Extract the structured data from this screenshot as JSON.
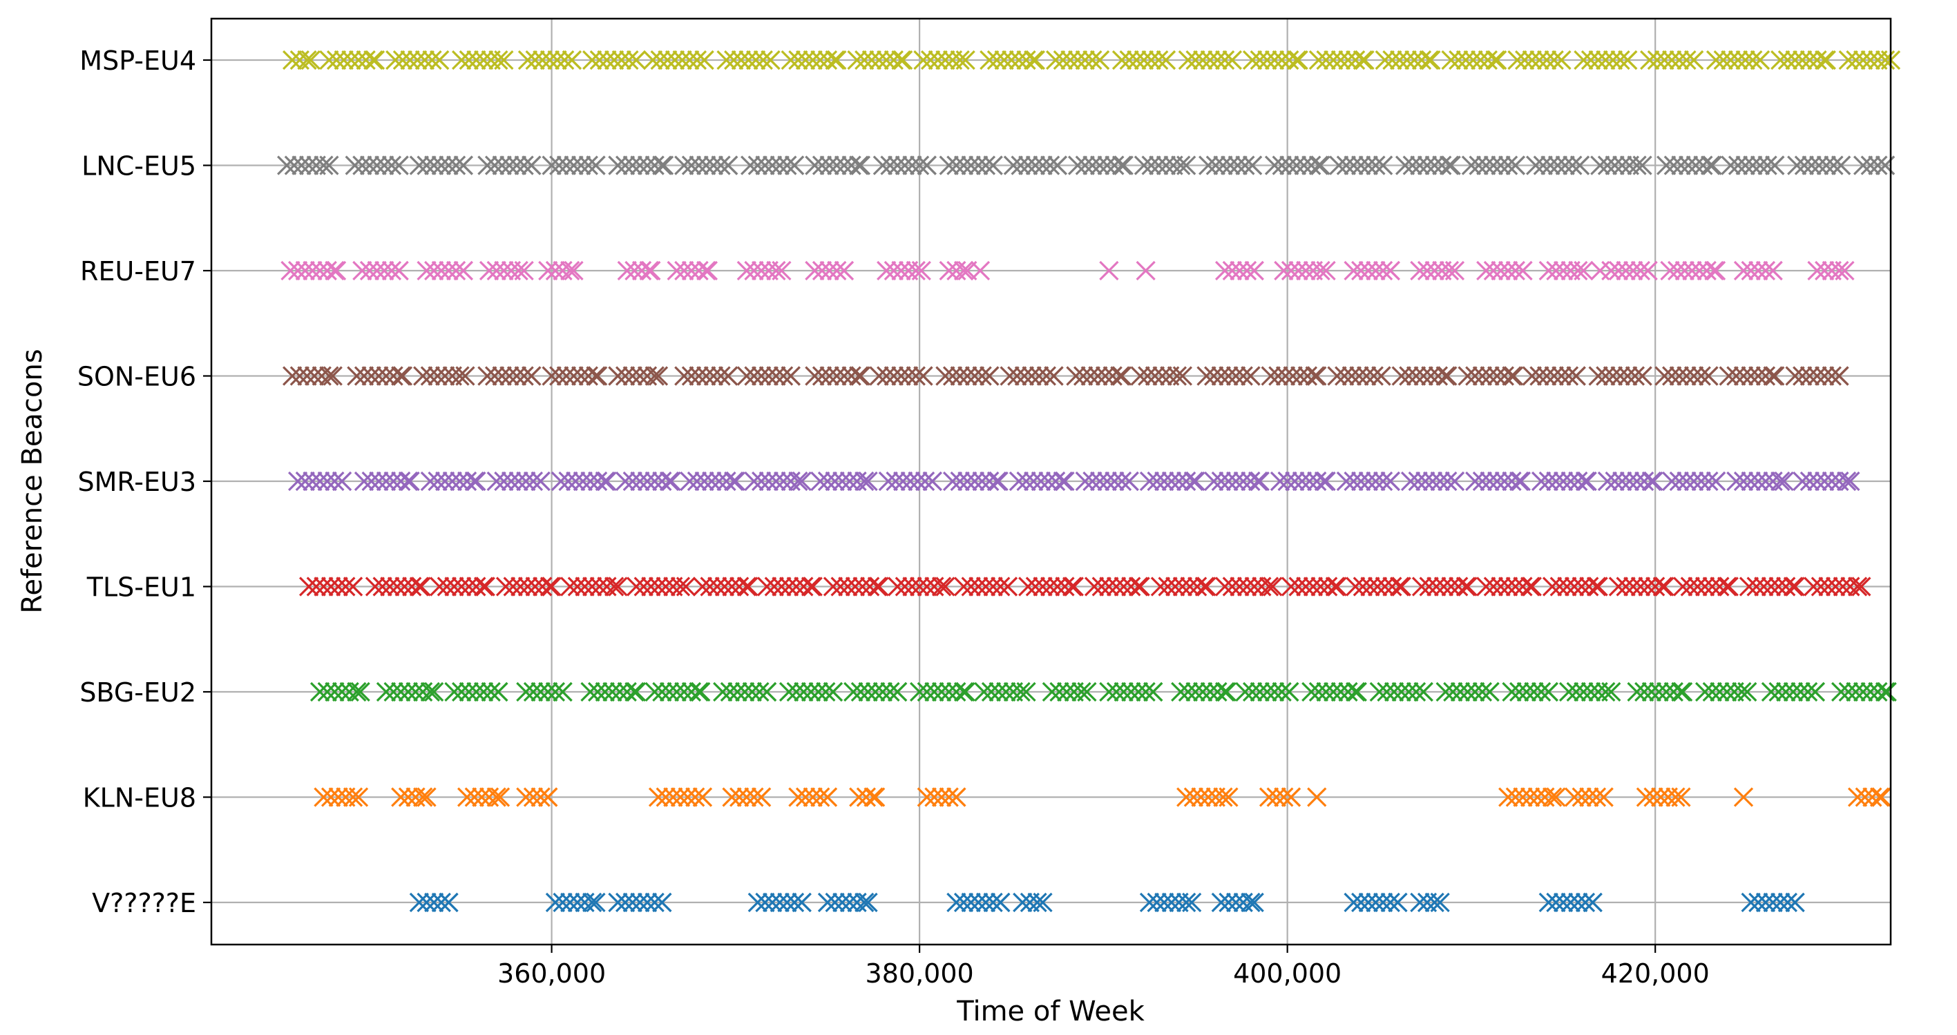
{
  "chart_data": {
    "type": "scatter",
    "title": "",
    "xlabel": "Time of Week",
    "ylabel": "Reference Beacons",
    "xlim": [
      341500,
      432800
    ],
    "x_ticks": [
      360000,
      380000,
      400000,
      420000
    ],
    "x_tick_labels": [
      "360,000",
      "380,000",
      "400,000",
      "420,000"
    ],
    "grid": true,
    "marker": "x",
    "categories": [
      "V?????E",
      "KLN-EU8",
      "SBG-EU2",
      "TLS-EU1",
      "SMR-EU3",
      "SON-EU6",
      "REU-EU7",
      "LNC-EU5",
      "MSP-EU4"
    ],
    "series": [
      {
        "name": "V?????E",
        "color": "#1f77b4",
        "intervals": [
          [
            352800,
            354400
          ],
          [
            360200,
            362400
          ],
          [
            363600,
            366000
          ],
          [
            371200,
            373600
          ],
          [
            375000,
            377200
          ],
          [
            382000,
            384400
          ],
          [
            385600,
            386700
          ],
          [
            392500,
            394800
          ],
          [
            396400,
            398200
          ],
          [
            403600,
            406000
          ],
          [
            407200,
            408300
          ],
          [
            414200,
            416600
          ],
          [
            425200,
            427600
          ]
        ]
      },
      {
        "name": "KLN-EU8",
        "color": "#ff7f0e",
        "intervals": [
          [
            347600,
            349500
          ],
          [
            351800,
            353200
          ],
          [
            355400,
            357200
          ],
          [
            358600,
            359800
          ],
          [
            365800,
            368200
          ],
          [
            369800,
            371400
          ],
          [
            373400,
            375000
          ],
          [
            376700,
            377600
          ],
          [
            380400,
            382000
          ],
          [
            394500,
            396800
          ],
          [
            399000,
            400200
          ],
          [
            412000,
            414600
          ],
          [
            415600,
            417200
          ],
          [
            419500,
            421400
          ],
          [
            431000,
            432300
          ]
        ]
      },
      {
        "name": "KLN-EU8",
        "color": "#ff7f0e",
        "points": [
          401600,
          424800
        ]
      },
      {
        "name": "SBG-EU2",
        "color": "#2ca02c",
        "intervals": [
          [
            347400,
            349600
          ],
          [
            351000,
            353600
          ],
          [
            354700,
            357100
          ],
          [
            358600,
            360600
          ],
          [
            362100,
            364600
          ],
          [
            365600,
            368100
          ],
          [
            369300,
            371700
          ],
          [
            372900,
            375300
          ],
          [
            376400,
            378800
          ],
          [
            380000,
            382500
          ],
          [
            383500,
            385800
          ],
          [
            387200,
            389100
          ],
          [
            390300,
            392700
          ],
          [
            394200,
            396700
          ],
          [
            397700,
            400100
          ],
          [
            401300,
            403800
          ],
          [
            405000,
            407400
          ],
          [
            408600,
            411000
          ],
          [
            412200,
            414200
          ],
          [
            415300,
            417600
          ],
          [
            419000,
            421500
          ],
          [
            422700,
            425000
          ],
          [
            426300,
            428700
          ],
          [
            430100,
            432600
          ]
        ]
      },
      {
        "name": "TLS-EU1",
        "color": "#d62728",
        "intervals": [
          [
            346800,
            349200
          ],
          [
            350400,
            352900
          ],
          [
            353900,
            356400
          ],
          [
            357500,
            360000
          ],
          [
            361000,
            363600
          ],
          [
            364600,
            367300
          ],
          [
            368200,
            370700
          ],
          [
            371700,
            374200
          ],
          [
            375300,
            377800
          ],
          [
            378800,
            381400
          ],
          [
            382400,
            384800
          ],
          [
            385900,
            388400
          ],
          [
            389500,
            392000
          ],
          [
            393100,
            395600
          ],
          [
            396600,
            399200
          ],
          [
            400200,
            402700
          ],
          [
            403700,
            406200
          ],
          [
            407300,
            409800
          ],
          [
            410800,
            413300
          ],
          [
            414400,
            416900
          ],
          [
            418000,
            420500
          ],
          [
            421500,
            424000
          ],
          [
            425100,
            427600
          ],
          [
            428600,
            431200
          ]
        ]
      },
      {
        "name": "SMR-EU3",
        "color": "#9467bd",
        "intervals": [
          [
            346200,
            348600
          ],
          [
            349800,
            352300
          ],
          [
            353400,
            355900
          ],
          [
            357000,
            359400
          ],
          [
            360500,
            363000
          ],
          [
            364000,
            366500
          ],
          [
            367500,
            370000
          ],
          [
            371000,
            373600
          ],
          [
            374600,
            377200
          ],
          [
            378300,
            380700
          ],
          [
            381800,
            384300
          ],
          [
            385400,
            387900
          ],
          [
            389000,
            391400
          ],
          [
            392500,
            395000
          ],
          [
            396000,
            398500
          ],
          [
            399600,
            402100
          ],
          [
            403200,
            405600
          ],
          [
            406700,
            409100
          ],
          [
            410200,
            412700
          ],
          [
            413800,
            416300
          ],
          [
            417400,
            419900
          ],
          [
            420900,
            423300
          ],
          [
            424400,
            427000
          ],
          [
            428000,
            430600
          ]
        ]
      },
      {
        "name": "SON-EU6",
        "color": "#8c564b",
        "intervals": [
          [
            345900,
            348100
          ],
          [
            349400,
            351900
          ],
          [
            353000,
            355300
          ],
          [
            356500,
            358900
          ],
          [
            360000,
            362500
          ],
          [
            363600,
            365800
          ],
          [
            367200,
            369600
          ],
          [
            370600,
            373000
          ],
          [
            374300,
            376800
          ],
          [
            377800,
            380200
          ],
          [
            381400,
            383800
          ],
          [
            384900,
            387300
          ],
          [
            388500,
            391000
          ],
          [
            392000,
            394300
          ],
          [
            395600,
            398000
          ],
          [
            399100,
            401600
          ],
          [
            402700,
            405100
          ],
          [
            406200,
            408700
          ],
          [
            409800,
            412300
          ],
          [
            413300,
            415700
          ],
          [
            416900,
            419300
          ],
          [
            420500,
            422900
          ],
          [
            424000,
            426500
          ],
          [
            427600,
            430000
          ]
        ]
      },
      {
        "name": "REU-EU7",
        "color": "#e377c2",
        "intervals": [
          [
            345800,
            348300
          ],
          [
            349700,
            351700
          ],
          [
            353200,
            355200
          ],
          [
            356600,
            358500
          ],
          [
            359800,
            361200
          ],
          [
            364100,
            365400
          ],
          [
            366800,
            368500
          ],
          [
            370600,
            372500
          ],
          [
            374300,
            375900
          ],
          [
            378200,
            380100
          ],
          [
            381600,
            382600
          ],
          [
            396600,
            398200
          ],
          [
            399800,
            402100
          ],
          [
            403600,
            405600
          ],
          [
            407200,
            409100
          ],
          [
            410800,
            412800
          ],
          [
            414200,
            416100
          ],
          [
            417600,
            419600
          ],
          [
            420800,
            423300
          ],
          [
            424800,
            426400
          ],
          [
            428800,
            430300
          ]
        ]
      },
      {
        "name": "REU-EU7",
        "color": "#e377c2",
        "points": [
          390300,
          392300,
          383300,
          417000
        ]
      },
      {
        "name": "LNC-EU5",
        "color": "#7f7f7f",
        "intervals": [
          [
            345600,
            347900
          ],
          [
            349300,
            351700
          ],
          [
            352800,
            355200
          ],
          [
            356500,
            358900
          ],
          [
            360000,
            362400
          ],
          [
            363600,
            366100
          ],
          [
            367200,
            369600
          ],
          [
            370800,
            373200
          ],
          [
            374300,
            376800
          ],
          [
            378000,
            380400
          ],
          [
            381600,
            384000
          ],
          [
            385100,
            387500
          ],
          [
            388600,
            391100
          ],
          [
            392200,
            394500
          ],
          [
            395700,
            398100
          ],
          [
            399300,
            401800
          ],
          [
            402800,
            405200
          ],
          [
            406400,
            408900
          ],
          [
            410000,
            412400
          ],
          [
            413500,
            415900
          ],
          [
            417000,
            419300
          ],
          [
            420600,
            423100
          ],
          [
            424100,
            426500
          ],
          [
            427700,
            430100
          ],
          [
            431300,
            432500
          ]
        ]
      },
      {
        "name": "MSP-EU4",
        "color": "#bcbd22",
        "intervals": [
          [
            345900,
            346900
          ],
          [
            347900,
            350400
          ],
          [
            351500,
            353900
          ],
          [
            355100,
            357400
          ],
          [
            358700,
            361100
          ],
          [
            362200,
            364600
          ],
          [
            365900,
            368300
          ],
          [
            369500,
            371900
          ],
          [
            373000,
            375500
          ],
          [
            376600,
            379100
          ],
          [
            380200,
            382500
          ],
          [
            383800,
            386300
          ],
          [
            387400,
            389800
          ],
          [
            391000,
            393400
          ],
          [
            394600,
            397000
          ],
          [
            398100,
            400600
          ],
          [
            401700,
            404200
          ],
          [
            405300,
            407800
          ],
          [
            408900,
            411400
          ],
          [
            412500,
            414900
          ],
          [
            416100,
            418500
          ],
          [
            419700,
            422100
          ],
          [
            423300,
            425700
          ],
          [
            426800,
            429300
          ],
          [
            430500,
            432800
          ]
        ]
      },
      {
        "name": "MSP-EU4",
        "color": "#bcbd22",
        "points": [
          365500
        ]
      }
    ]
  }
}
